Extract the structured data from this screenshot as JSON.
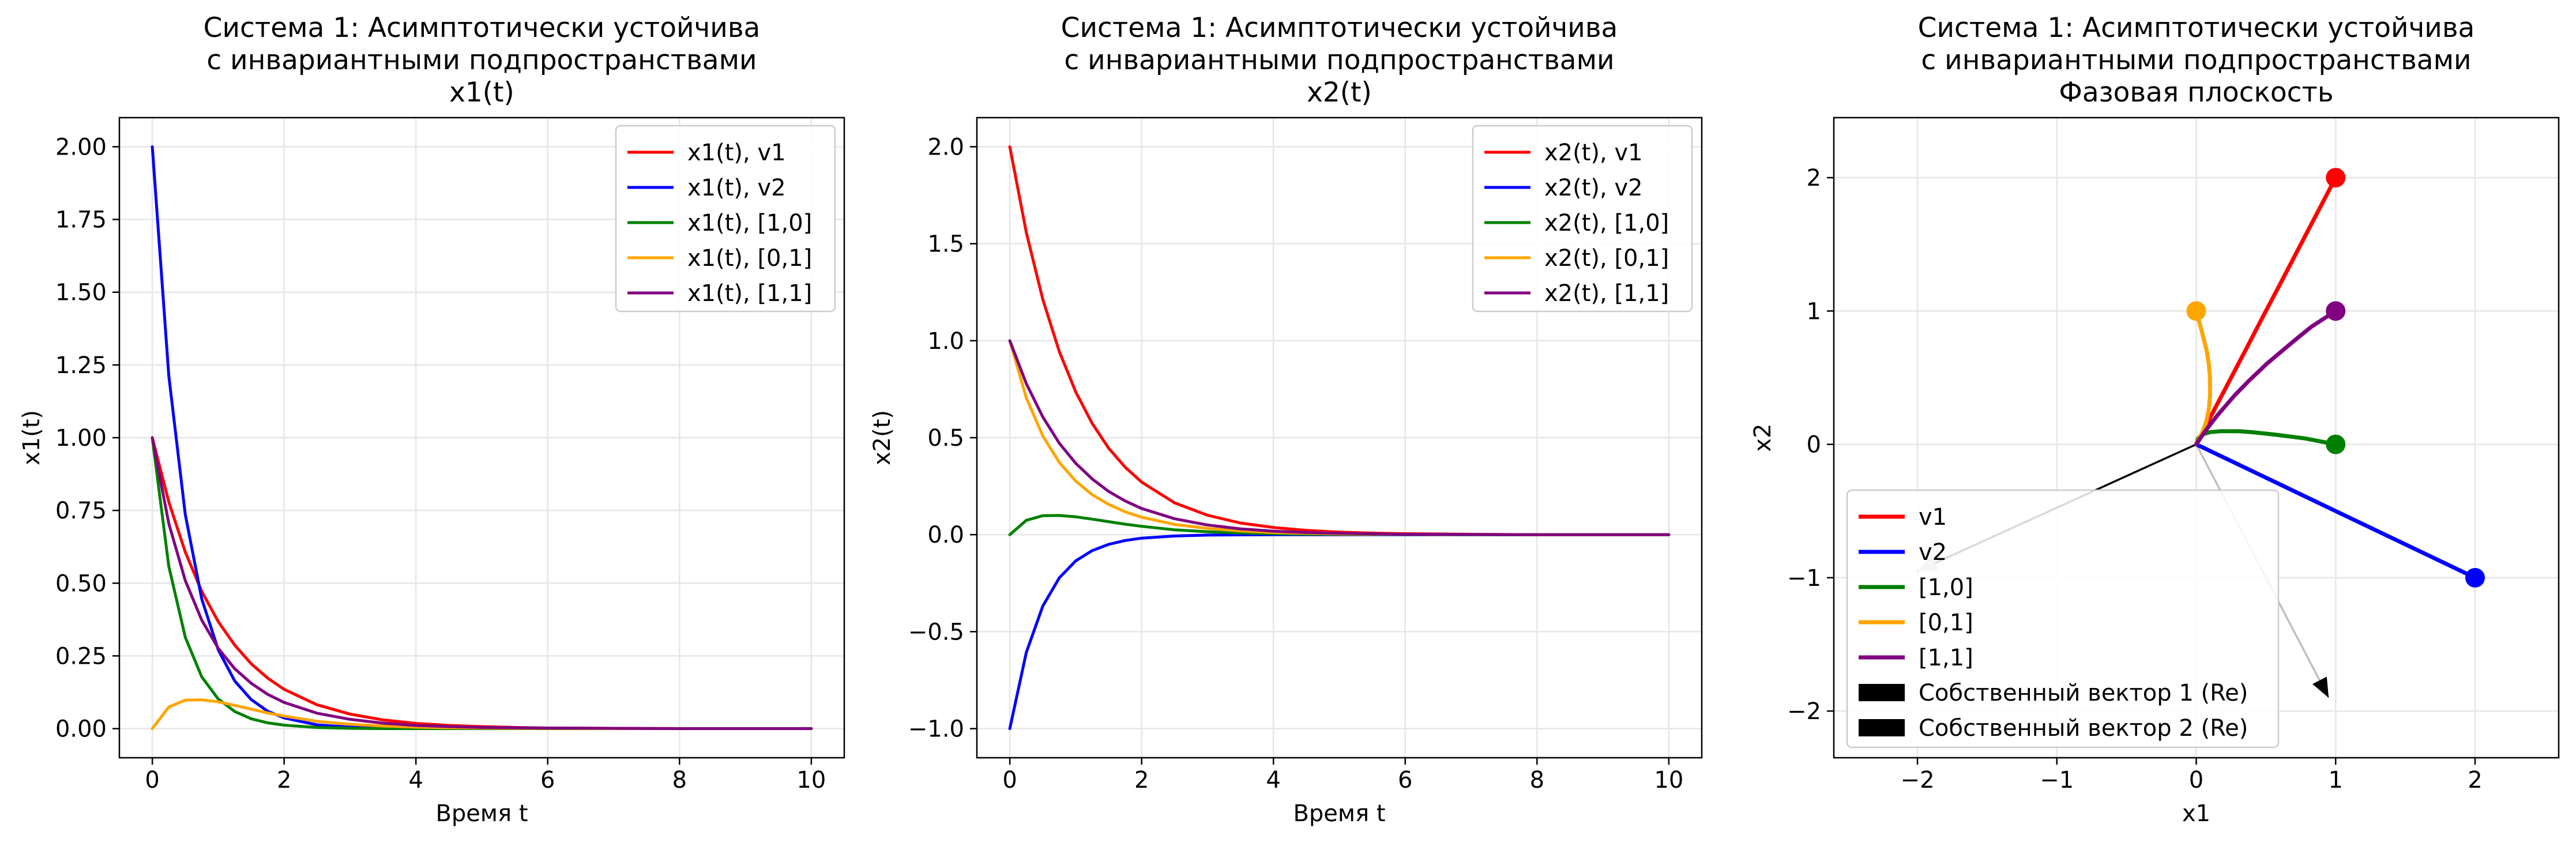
{
  "chart_data": [
    {
      "type": "line",
      "title": [
        "Система 1: Асимптотически устойчива",
        "с инвариантными подпространствами",
        "x1(t)"
      ],
      "xlabel": "Время t",
      "ylabel": "x1(t)",
      "xlim": [
        -0.5,
        10.5
      ],
      "ylim": [
        -0.1,
        2.1
      ],
      "xticks": [
        0,
        2,
        4,
        6,
        8,
        10
      ],
      "xtick_labels": [
        "0",
        "2",
        "4",
        "6",
        "8",
        "10"
      ],
      "yticks": [
        0,
        0.25,
        0.5,
        0.75,
        1,
        1.25,
        1.5,
        1.75,
        2
      ],
      "ytick_labels": [
        "0.00",
        "0.25",
        "0.50",
        "0.75",
        "1.00",
        "1.25",
        "1.50",
        "1.75",
        "2.00"
      ],
      "grid": true,
      "legend_position": "top-right",
      "series": [
        {
          "name": "x1(t), v1",
          "color": "#ff0000",
          "x": [
            0,
            0.25,
            0.5,
            0.75,
            1,
            1.25,
            1.5,
            1.75,
            2,
            2.5,
            3,
            3.5,
            4,
            4.5,
            5,
            5.5,
            6,
            7,
            8,
            9,
            10
          ],
          "y": [
            1,
            0.779,
            0.607,
            0.472,
            0.368,
            0.287,
            0.223,
            0.174,
            0.135,
            0.082,
            0.05,
            0.03,
            0.018,
            0.011,
            0.007,
            0.004,
            0.002,
            0.001,
            0,
            0,
            0
          ]
        },
        {
          "name": "x1(t), v2",
          "color": "#0000ff",
          "x": [
            0,
            0.25,
            0.5,
            0.75,
            1,
            1.25,
            1.5,
            1.75,
            2,
            2.5,
            3,
            3.5,
            4,
            4.5,
            5,
            5.5,
            6,
            7,
            8,
            9,
            10
          ],
          "y": [
            2,
            1.213,
            0.736,
            0.446,
            0.271,
            0.164,
            0.1,
            0.06,
            0.037,
            0.013,
            0.005,
            0.002,
            0.001,
            0,
            0,
            0,
            0,
            0,
            0,
            0,
            0
          ]
        },
        {
          "name": "x1(t), [1,0]",
          "color": "#008000",
          "x": [
            0,
            0.25,
            0.5,
            0.75,
            1,
            1.25,
            1.5,
            1.75,
            2,
            2.5,
            3,
            3.5,
            4,
            4.5,
            5,
            5.5,
            6,
            7,
            8,
            9,
            10
          ],
          "y": [
            1,
            0.558,
            0.314,
            0.178,
            0.102,
            0.059,
            0.034,
            0.02,
            0.012,
            0.004,
            0.001,
            0,
            0,
            0,
            0,
            0,
            0,
            0,
            0,
            0,
            0
          ]
        },
        {
          "name": "x1(t), [0,1]",
          "color": "#ffa500",
          "x": [
            0,
            0.25,
            0.5,
            0.75,
            1,
            1.25,
            1.5,
            1.75,
            2,
            2.5,
            3,
            3.5,
            4,
            4.5,
            5,
            5.5,
            6,
            7,
            8,
            9,
            10
          ],
          "y": [
            0,
            0.074,
            0.098,
            0.099,
            0.092,
            0.08,
            0.067,
            0.054,
            0.043,
            0.025,
            0.015,
            0.009,
            0.005,
            0.003,
            0.002,
            0.001,
            0.001,
            0,
            0,
            0,
            0
          ]
        },
        {
          "name": "x1(t), [1,1]",
          "color": "#800080",
          "x": [
            0,
            0.25,
            0.5,
            0.75,
            1,
            1.25,
            1.5,
            1.75,
            2,
            2.5,
            3,
            3.5,
            4,
            4.5,
            5,
            5.5,
            6,
            7,
            8,
            9,
            10
          ],
          "y": [
            1,
            0.705,
            0.509,
            0.373,
            0.276,
            0.206,
            0.156,
            0.118,
            0.09,
            0.053,
            0.032,
            0.019,
            0.011,
            0.007,
            0.004,
            0.003,
            0.002,
            0.001,
            0,
            0,
            0
          ]
        }
      ]
    },
    {
      "type": "line",
      "title": [
        "Система 1: Асимптотически устойчива",
        "с инвариантными подпространствами",
        "x2(t)"
      ],
      "xlabel": "Время t",
      "ylabel": "x2(t)",
      "xlim": [
        -0.5,
        10.5
      ],
      "ylim": [
        -1.15,
        2.15
      ],
      "xticks": [
        0,
        2,
        4,
        6,
        8,
        10
      ],
      "xtick_labels": [
        "0",
        "2",
        "4",
        "6",
        "8",
        "10"
      ],
      "yticks": [
        -1,
        -0.5,
        0,
        0.5,
        1,
        1.5,
        2
      ],
      "ytick_labels": [
        "−1.0",
        "−0.5",
        "0.0",
        "0.5",
        "1.0",
        "1.5",
        "2.0"
      ],
      "grid": true,
      "legend_position": "top-right",
      "series": [
        {
          "name": "x2(t), v1",
          "color": "#ff0000",
          "x": [
            0,
            0.25,
            0.5,
            0.75,
            1,
            1.25,
            1.5,
            1.75,
            2,
            2.5,
            3,
            3.5,
            4,
            4.5,
            5,
            5.5,
            6,
            7,
            8,
            9,
            10
          ],
          "y": [
            2,
            1.558,
            1.213,
            0.945,
            0.736,
            0.573,
            0.446,
            0.348,
            0.271,
            0.164,
            0.1,
            0.06,
            0.037,
            0.022,
            0.013,
            0.008,
            0.005,
            0.002,
            0,
            0,
            0
          ]
        },
        {
          "name": "x2(t), v2",
          "color": "#0000ff",
          "x": [
            0,
            0.25,
            0.5,
            0.75,
            1,
            1.25,
            1.5,
            1.75,
            2,
            2.5,
            3,
            3.5,
            4,
            4.5,
            5,
            5.5,
            6,
            7,
            8,
            9,
            10
          ],
          "y": [
            -1,
            -0.607,
            -0.368,
            -0.223,
            -0.135,
            -0.082,
            -0.05,
            -0.03,
            -0.018,
            -0.007,
            -0.002,
            -0.001,
            0,
            0,
            0,
            0,
            0,
            0,
            0,
            0,
            0
          ]
        },
        {
          "name": "x2(t), [1,0]",
          "color": "#008000",
          "x": [
            0,
            0.25,
            0.5,
            0.75,
            1,
            1.25,
            1.5,
            1.75,
            2,
            2.5,
            3,
            3.5,
            4,
            4.5,
            5,
            5.5,
            6,
            7,
            8,
            9,
            10
          ],
          "y": [
            0,
            0.074,
            0.098,
            0.099,
            0.092,
            0.08,
            0.067,
            0.054,
            0.043,
            0.025,
            0.015,
            0.009,
            0.005,
            0.003,
            0.002,
            0.001,
            0.001,
            0,
            0,
            0,
            0
          ]
        },
        {
          "name": "x2(t), [0,1]",
          "color": "#ffa500",
          "x": [
            0,
            0.25,
            0.5,
            0.75,
            1,
            1.25,
            1.5,
            1.75,
            2,
            2.5,
            3,
            3.5,
            4,
            4.5,
            5,
            5.5,
            6,
            7,
            8,
            9,
            10
          ],
          "y": [
            1,
            0.705,
            0.509,
            0.373,
            0.276,
            0.206,
            0.156,
            0.118,
            0.09,
            0.053,
            0.032,
            0.019,
            0.011,
            0.007,
            0.004,
            0.003,
            0.002,
            0.001,
            0,
            0,
            0
          ]
        },
        {
          "name": "x2(t), [1,1]",
          "color": "#800080",
          "x": [
            0,
            0.25,
            0.5,
            0.75,
            1,
            1.25,
            1.5,
            1.75,
            2,
            2.5,
            3,
            3.5,
            4,
            4.5,
            5,
            5.5,
            6,
            7,
            8,
            9,
            10
          ],
          "y": [
            1,
            0.779,
            0.607,
            0.472,
            0.368,
            0.287,
            0.223,
            0.174,
            0.135,
            0.082,
            0.05,
            0.03,
            0.018,
            0.011,
            0.007,
            0.004,
            0.002,
            0.001,
            0,
            0,
            0
          ]
        }
      ]
    },
    {
      "type": "line",
      "title": [
        "Система 1: Асимптотически устойчива",
        "с инвариантными подпространствами",
        "Фазовая плоскость"
      ],
      "xlabel": "x1",
      "ylabel": "x2",
      "xlim": [
        -2.6,
        2.6
      ],
      "ylim": [
        -2.35,
        2.45
      ],
      "xticks": [
        -2,
        -1,
        0,
        1,
        2
      ],
      "xtick_labels": [
        "−2",
        "−1",
        "0",
        "1",
        "2"
      ],
      "yticks": [
        -2,
        -1,
        0,
        1,
        2
      ],
      "ytick_labels": [
        "−2",
        "−1",
        "0",
        "1",
        "2"
      ],
      "grid": true,
      "legend_position": "lower-left",
      "series": [
        {
          "name": "v1",
          "color": "#ff0000",
          "x": [
            1,
            0.779,
            0.607,
            0.472,
            0.368,
            0.223,
            0.135,
            0.082,
            0.05,
            0.018,
            0
          ],
          "y": [
            2,
            1.558,
            1.213,
            0.945,
            0.736,
            0.446,
            0.271,
            0.164,
            0.1,
            0.037,
            0
          ]
        },
        {
          "name": "v2",
          "color": "#0000ff",
          "x": [
            2,
            1.213,
            0.736,
            0.446,
            0.271,
            0.1,
            0.037,
            0.013,
            0.005,
            0
          ],
          "y": [
            -1,
            -0.607,
            -0.368,
            -0.223,
            -0.135,
            -0.05,
            -0.018,
            -0.007,
            -0.002,
            0
          ]
        },
        {
          "name": "[1,0]",
          "color": "#008000",
          "x": [
            1,
            0.779,
            0.558,
            0.414,
            0.314,
            0.178,
            0.102,
            0.059,
            0.034,
            0.012,
            0
          ],
          "y": [
            0,
            0.045,
            0.074,
            0.09,
            0.098,
            0.099,
            0.092,
            0.08,
            0.067,
            0.043,
            0
          ]
        },
        {
          "name": "[0,1]",
          "color": "#ffa500",
          "x": [
            0,
            0.045,
            0.074,
            0.09,
            0.098,
            0.099,
            0.092,
            0.08,
            0.067,
            0.043,
            0.025,
            0.015,
            0.005,
            0
          ],
          "y": [
            1,
            0.827,
            0.705,
            0.602,
            0.509,
            0.373,
            0.276,
            0.206,
            0.156,
            0.09,
            0.053,
            0.032,
            0.011,
            0
          ]
        },
        {
          "name": "[1,1]",
          "color": "#800080",
          "x": [
            1,
            0.827,
            0.705,
            0.509,
            0.373,
            0.276,
            0.156,
            0.09,
            0.053,
            0.019,
            0
          ],
          "y": [
            1,
            0.883,
            0.779,
            0.607,
            0.472,
            0.368,
            0.223,
            0.135,
            0.082,
            0.03,
            0
          ]
        }
      ],
      "start_points": [
        {
          "x": 1,
          "y": 2,
          "color": "#ff0000"
        },
        {
          "x": 2,
          "y": -1,
          "color": "#0000ff"
        },
        {
          "x": 1,
          "y": 0,
          "color": "#008000"
        },
        {
          "x": 0,
          "y": 1,
          "color": "#ffa500"
        },
        {
          "x": 1,
          "y": 1,
          "color": "#800080"
        }
      ],
      "eigenvectors": [
        {
          "name": "Собственный вектор 1 (Re)",
          "dx": -2.0,
          "dy": -0.95,
          "line_color": "#000000",
          "arrow_color": "#bfbfbf"
        },
        {
          "name": "Собственный вектор 2 (Re)",
          "dx": 0.95,
          "dy": -1.9,
          "line_color": "#bfbfbf",
          "arrow_color": "#000000"
        }
      ]
    }
  ]
}
